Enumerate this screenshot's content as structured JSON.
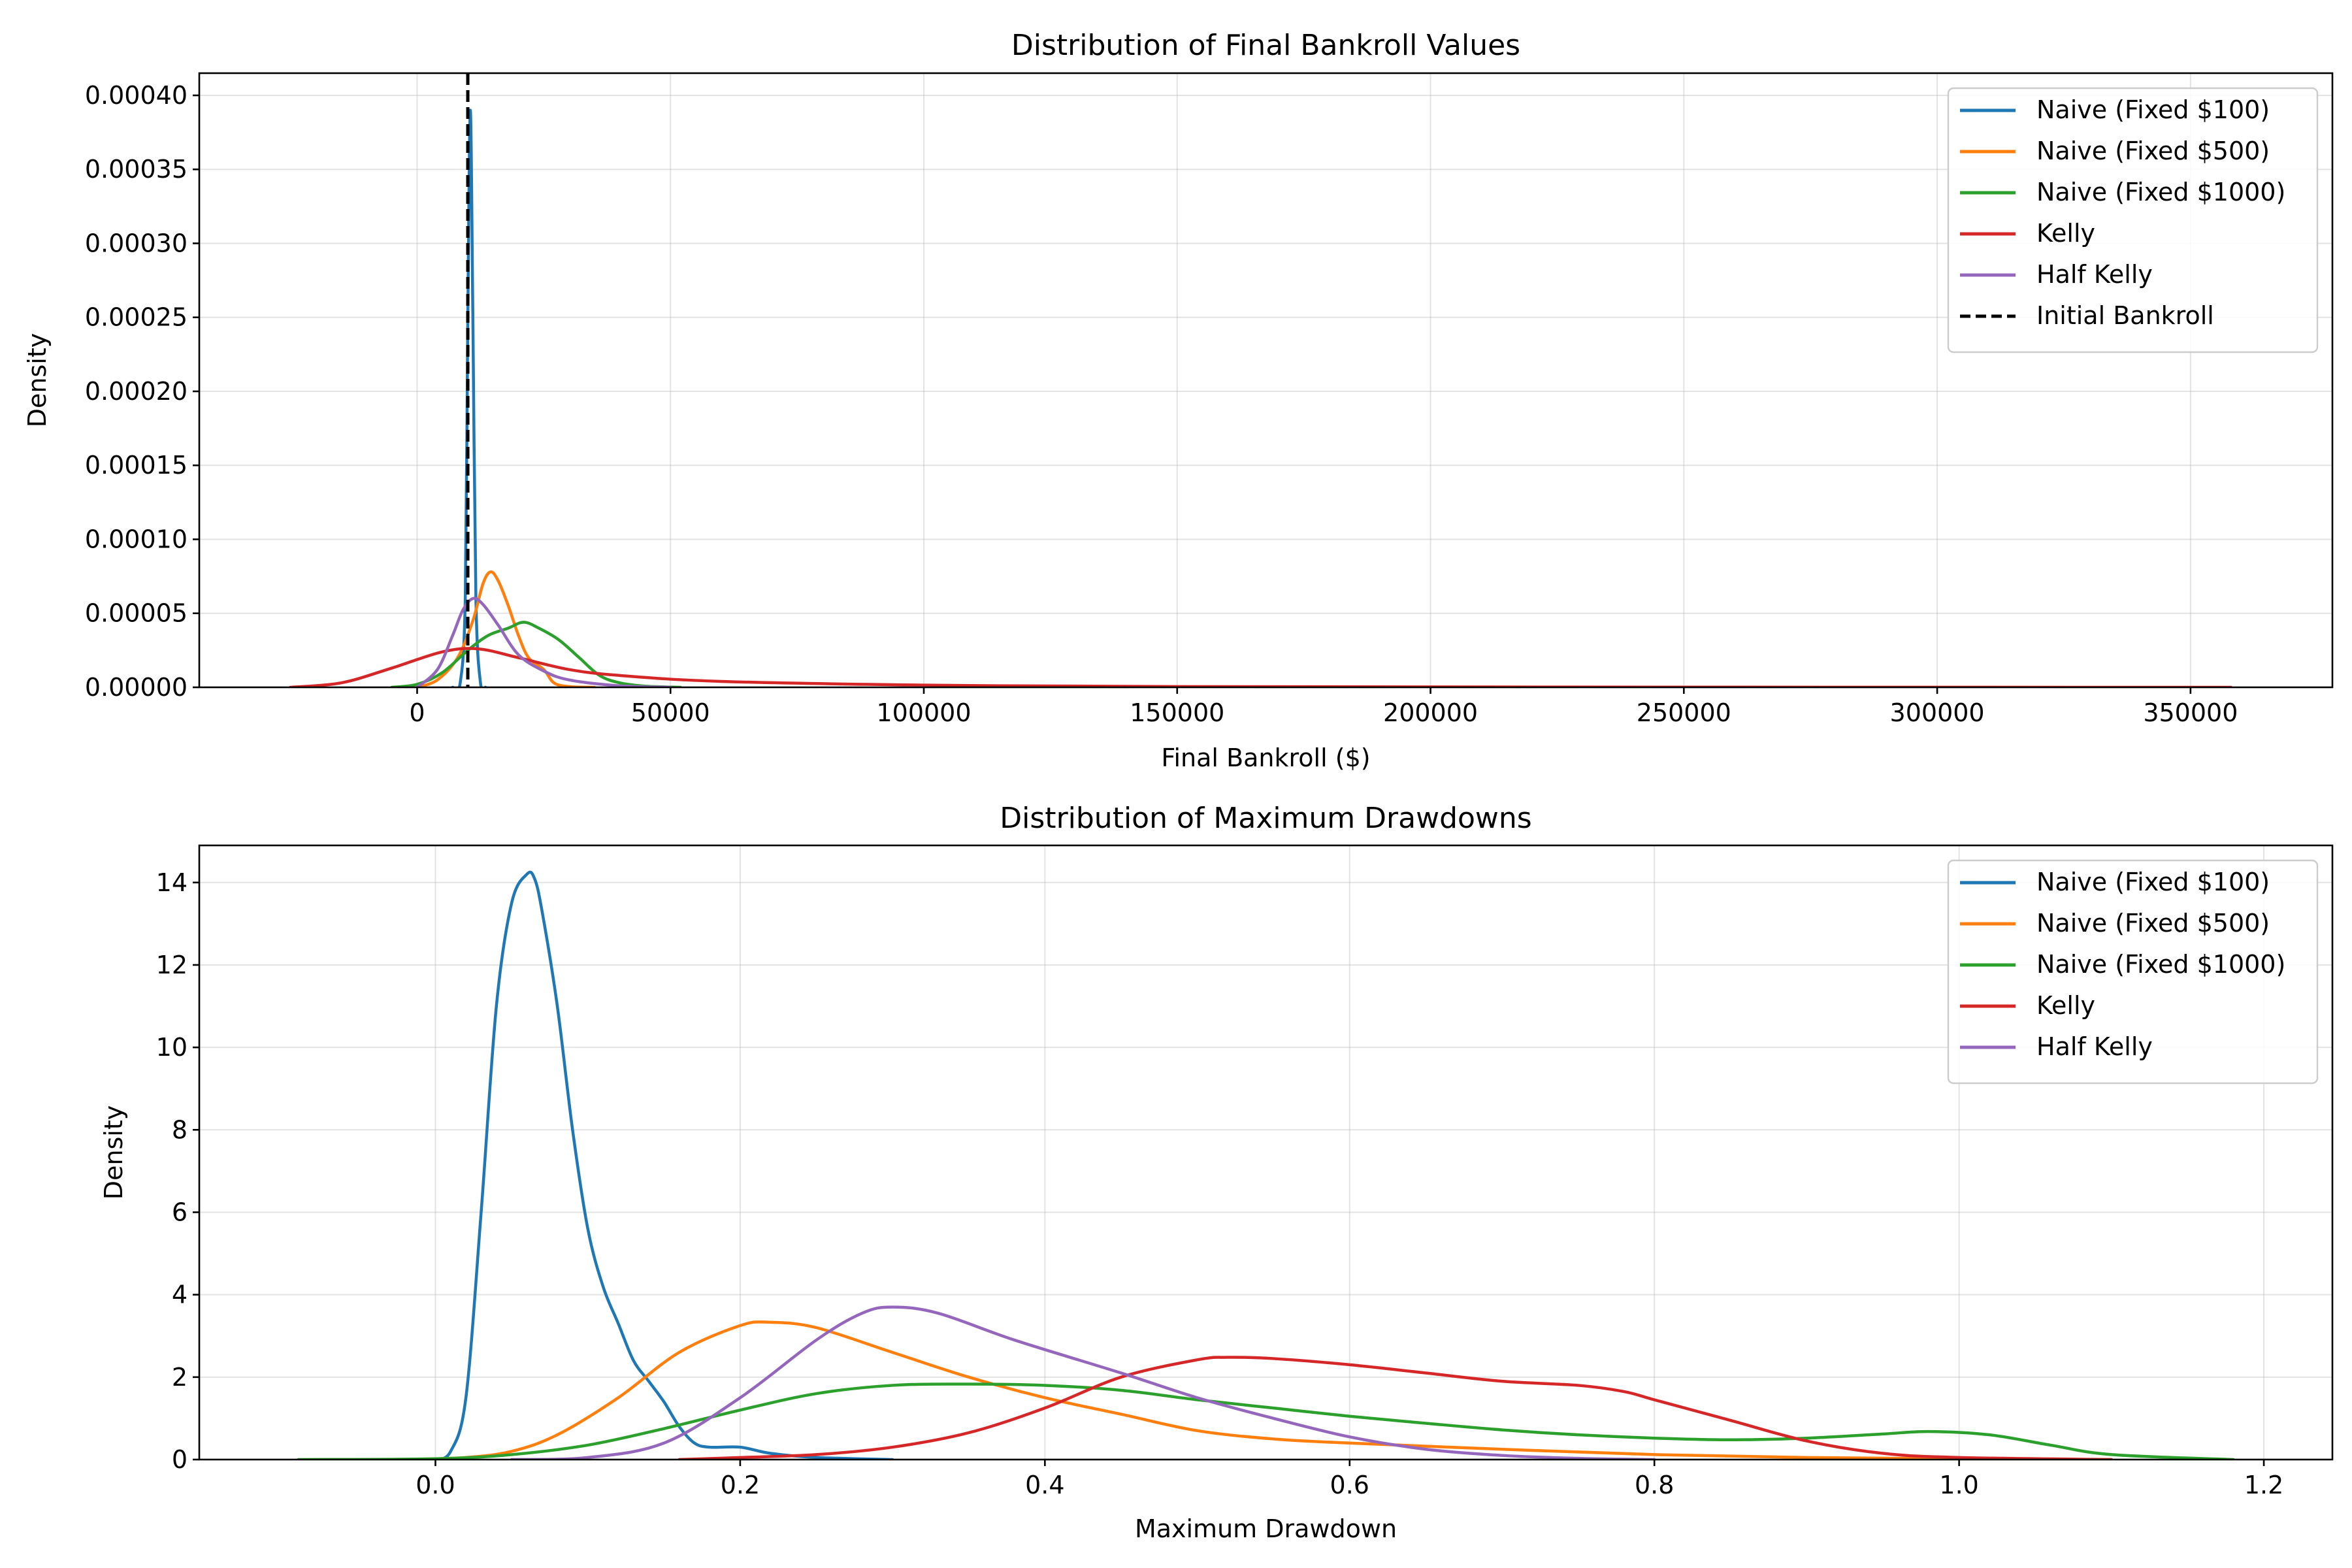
{
  "chart_data": [
    {
      "type": "line",
      "title": "Distribution of Final Bankroll Values",
      "xlabel": "Final Bankroll ($)",
      "ylabel": "Density",
      "xlim": [
        -43000,
        378000
      ],
      "ylim": [
        0,
        0.000415
      ],
      "x_ticks": [
        0,
        50000,
        100000,
        150000,
        200000,
        250000,
        300000,
        350000
      ],
      "x_tick_labels": [
        "0",
        "50000",
        "100000",
        "150000",
        "200000",
        "250000",
        "300000",
        "350000"
      ],
      "y_ticks": [
        0,
        5e-05,
        0.0001,
        0.00015,
        0.0002,
        0.00025,
        0.0003,
        0.00035,
        0.0004
      ],
      "y_tick_labels": [
        "0.00000",
        "0.00005",
        "0.00010",
        "0.00015",
        "0.00020",
        "0.00025",
        "0.00030",
        "0.00035",
        "0.00040"
      ],
      "grid": true,
      "legend_position": "top-right",
      "series": [
        {
          "name": "Naive (Fixed $100)",
          "color": "#1f77b4",
          "style": "solid",
          "x": [
            7000,
            8500,
            9500,
            10000,
            10500,
            11000,
            11600,
            12500,
            13500
          ],
          "y": [
            0,
            3e-06,
            6e-05,
            0.00025,
            0.00039,
            0.00025,
            6e-05,
            3e-06,
            0
          ]
        },
        {
          "name": "Naive (Fixed $500)",
          "color": "#ff7f0e",
          "style": "solid",
          "x": [
            0,
            4000,
            8000,
            11000,
            13000,
            14500,
            16000,
            18000,
            20000,
            22000,
            25000,
            27000,
            30000,
            35000
          ],
          "y": [
            0,
            5e-06,
            2e-05,
            4.5e-05,
            7e-05,
            7.8e-05,
            7.2e-05,
            5.5e-05,
            3.5e-05,
            2e-05,
            1.2e-05,
            3e-06,
            5e-07,
            0
          ]
        },
        {
          "name": "Naive (Fixed $1000)",
          "color": "#2ca02c",
          "style": "solid",
          "x": [
            -5000,
            0,
            5000,
            10000,
            14000,
            18000,
            21000,
            24000,
            28000,
            32000,
            36000,
            40000,
            45000,
            52000
          ],
          "y": [
            0,
            2e-06,
            1e-05,
            2.5e-05,
            3.5e-05,
            4e-05,
            4.4e-05,
            4e-05,
            3.2e-05,
            2e-05,
            8e-06,
            3e-06,
            8e-07,
            0
          ]
        },
        {
          "name": "Kelly",
          "color": "#d62728",
          "style": "solid",
          "x": [
            -25000,
            -15000,
            -5000,
            5000,
            12000,
            20000,
            30000,
            40000,
            60000,
            100000,
            150000,
            250000,
            358000
          ],
          "y": [
            0,
            3e-06,
            1.3e-05,
            2.4e-05,
            2.6e-05,
            2e-05,
            1.2e-05,
            8e-06,
            4e-06,
            1.5e-06,
            5e-07,
            1e-07,
            0
          ]
        },
        {
          "name": "Half Kelly",
          "color": "#9467bd",
          "style": "solid",
          "x": [
            0,
            4000,
            7000,
            9000,
            11000,
            13000,
            16000,
            20000,
            25000,
            30000,
            40000,
            50000
          ],
          "y": [
            0,
            1.2e-05,
            3.5e-05,
            5.2e-05,
            6e-05,
            5.6e-05,
            4.2e-05,
            2.2e-05,
            1.1e-05,
            5e-06,
            1e-06,
            0
          ]
        }
      ],
      "reference_lines": [
        {
          "name": "Initial Bankroll",
          "orientation": "vertical",
          "x": 10000,
          "color": "#000000",
          "style": "dashed"
        }
      ]
    },
    {
      "type": "line",
      "title": "Distribution of Maximum Drawdowns",
      "xlabel": "Maximum Drawdown",
      "ylabel": "Density",
      "xlim": [
        -0.155,
        1.245
      ],
      "ylim": [
        0,
        14.9
      ],
      "x_ticks": [
        0,
        0.2,
        0.4,
        0.6,
        0.8,
        1.0,
        1.2
      ],
      "x_tick_labels": [
        "0.0",
        "0.2",
        "0.4",
        "0.6",
        "0.8",
        "1.0",
        "1.2"
      ],
      "y_ticks": [
        0,
        2,
        4,
        6,
        8,
        10,
        12,
        14
      ],
      "y_tick_labels": [
        "0",
        "2",
        "4",
        "6",
        "8",
        "10",
        "12",
        "14"
      ],
      "grid": true,
      "legend_position": "top-right",
      "series": [
        {
          "name": "Naive (Fixed $100)",
          "color": "#1f77b4",
          "style": "solid",
          "x": [
            0,
            0.01,
            0.02,
            0.03,
            0.04,
            0.05,
            0.06,
            0.065,
            0.07,
            0.08,
            0.09,
            0.1,
            0.11,
            0.12,
            0.13,
            0.14,
            0.15,
            0.16,
            0.17,
            0.18,
            0.2,
            0.22,
            0.25,
            0.3
          ],
          "y": [
            0,
            0.2,
            1.5,
            6.0,
            11.0,
            13.5,
            14.2,
            14.1,
            13.3,
            11.0,
            8.0,
            5.6,
            4.2,
            3.3,
            2.4,
            1.9,
            1.4,
            0.8,
            0.4,
            0.3,
            0.3,
            0.15,
            0.05,
            0
          ]
        },
        {
          "name": "Naive (Fixed $500)",
          "color": "#ff7f0e",
          "style": "solid",
          "x": [
            -0.02,
            0.02,
            0.05,
            0.08,
            0.12,
            0.16,
            0.2,
            0.22,
            0.25,
            0.3,
            0.35,
            0.4,
            0.45,
            0.5,
            0.55,
            0.6,
            0.7,
            0.8,
            0.9,
            1.0,
            1.1
          ],
          "y": [
            0,
            0.05,
            0.2,
            0.6,
            1.5,
            2.6,
            3.25,
            3.33,
            3.2,
            2.6,
            2.0,
            1.5,
            1.1,
            0.7,
            0.5,
            0.4,
            0.25,
            0.12,
            0.05,
            0.02,
            0
          ]
        },
        {
          "name": "Naive (Fixed $1000)",
          "color": "#2ca02c",
          "style": "solid",
          "x": [
            -0.09,
            0.0,
            0.05,
            0.1,
            0.15,
            0.2,
            0.25,
            0.3,
            0.35,
            0.4,
            0.45,
            0.5,
            0.55,
            0.6,
            0.65,
            0.7,
            0.75,
            0.8,
            0.85,
            0.9,
            0.95,
            0.98,
            1.02,
            1.06,
            1.1,
            1.18
          ],
          "y": [
            0,
            0.02,
            0.12,
            0.35,
            0.75,
            1.2,
            1.6,
            1.8,
            1.83,
            1.8,
            1.68,
            1.45,
            1.25,
            1.05,
            0.88,
            0.72,
            0.6,
            0.52,
            0.48,
            0.52,
            0.62,
            0.68,
            0.6,
            0.35,
            0.12,
            0
          ]
        },
        {
          "name": "Kelly",
          "color": "#d62728",
          "style": "solid",
          "x": [
            0.16,
            0.2,
            0.25,
            0.3,
            0.35,
            0.4,
            0.45,
            0.5,
            0.52,
            0.55,
            0.6,
            0.65,
            0.7,
            0.75,
            0.78,
            0.8,
            0.85,
            0.9,
            0.95,
            1.0,
            1.1
          ],
          "y": [
            0,
            0.05,
            0.12,
            0.3,
            0.65,
            1.25,
            2.0,
            2.42,
            2.48,
            2.45,
            2.3,
            2.1,
            1.9,
            1.8,
            1.65,
            1.45,
            0.95,
            0.45,
            0.15,
            0.05,
            0
          ]
        },
        {
          "name": "Half Kelly",
          "color": "#9467bd",
          "style": "solid",
          "x": [
            0.05,
            0.1,
            0.15,
            0.2,
            0.25,
            0.28,
            0.3,
            0.33,
            0.38,
            0.45,
            0.5,
            0.55,
            0.6,
            0.65,
            0.7,
            0.75,
            0.8
          ],
          "y": [
            0,
            0.05,
            0.4,
            1.5,
            2.9,
            3.55,
            3.7,
            3.55,
            2.9,
            2.1,
            1.5,
            1.0,
            0.55,
            0.25,
            0.1,
            0.03,
            0
          ]
        }
      ]
    }
  ]
}
